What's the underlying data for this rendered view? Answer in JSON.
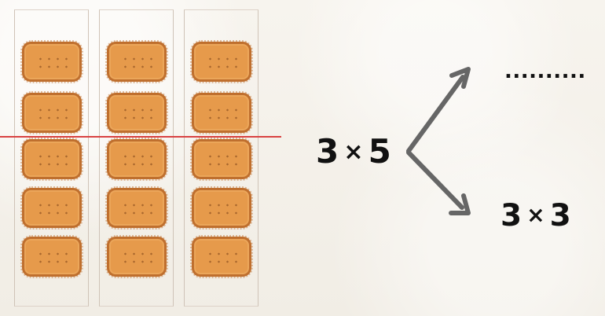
{
  "expression_main": {
    "left": "3",
    "operator": "×",
    "right": "5"
  },
  "top_result": {
    "text": ".........."
  },
  "bottom_result": {
    "left": "3",
    "operator": "×",
    "right": "3"
  },
  "illustration": {
    "columns": 3,
    "rows": 5,
    "split_after_row": 2
  },
  "colors": {
    "background": "#f4f1ea",
    "biscuit_fill": "#e69a4b",
    "biscuit_border": "#bf6f2e",
    "divider_line": "#d94242",
    "arrow": "#666666",
    "text": "#111111"
  }
}
